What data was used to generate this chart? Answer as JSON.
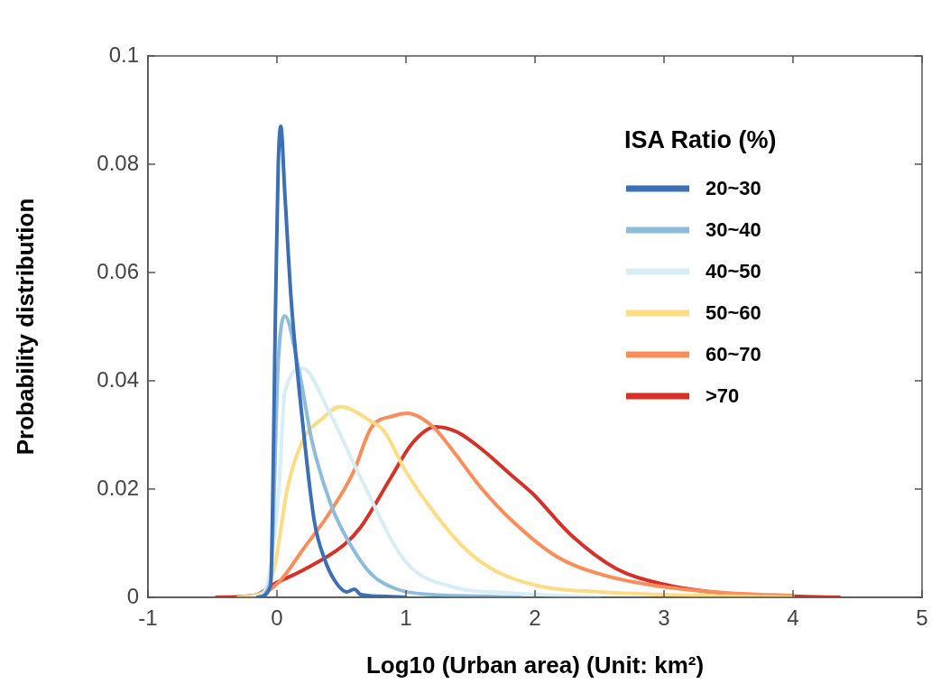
{
  "chart_data": {
    "type": "line",
    "xlabel": "Log10 (Urban area) (Unit: km²)",
    "ylabel": "Probability distribution",
    "legend_title": "ISA Ratio (%)",
    "legend": "top right",
    "xlim": [
      -1,
      5
    ],
    "xticks": [
      -1,
      0,
      1,
      2,
      3,
      4,
      5
    ],
    "ylim": [
      0,
      0.1
    ],
    "yticks": [
      0,
      0.02,
      0.04,
      0.06,
      0.08,
      0.1
    ],
    "line_style": "solid",
    "marker": "none",
    "series": [
      {
        "name": "20~30",
        "color": "#3b6fb6",
        "x": [
          -0.15,
          -0.05,
          -0.01,
          0.01,
          0.03,
          0.06,
          0.11,
          0.2,
          0.29,
          0.37,
          0.45,
          0.54,
          0.6,
          0.65,
          0.8,
          1.0
        ],
        "values": [
          0,
          0.002,
          0.055,
          0.08,
          0.087,
          0.075,
          0.055,
          0.032,
          0.014,
          0.007,
          0.003,
          0.001,
          0.0015,
          0.0005,
          0.0002,
          0
        ]
      },
      {
        "name": "30~40",
        "color": "#8dbcdc",
        "x": [
          -0.15,
          -0.05,
          0.01,
          0.06,
          0.17,
          0.27,
          0.42,
          0.57,
          0.73,
          0.93,
          1.2,
          1.6,
          1.89
        ],
        "values": [
          0,
          0.003,
          0.0435,
          0.052,
          0.042,
          0.029,
          0.017,
          0.0097,
          0.0043,
          0.0015,
          0.0005,
          0.0002,
          0
        ]
      },
      {
        "name": "40~50",
        "color": "#d8eef5",
        "x": [
          -0.2,
          -0.1,
          0.015,
          0.06,
          0.2,
          0.39,
          0.65,
          1.0,
          1.35,
          1.82,
          2.5
        ],
        "values": [
          0,
          0.001,
          0.02,
          0.0377,
          0.0423,
          0.035,
          0.022,
          0.0065,
          0.002,
          0.0008,
          0
        ]
      },
      {
        "name": "50~60",
        "color": "#fedc84",
        "x": [
          -0.3,
          -0.1,
          -0.02,
          0.08,
          0.2,
          0.35,
          0.49,
          0.73,
          0.83,
          1.0,
          1.23,
          1.47,
          1.7,
          2.05,
          2.5,
          3.0,
          4.0
        ],
        "values": [
          0,
          0.001,
          0.0055,
          0.02,
          0.029,
          0.033,
          0.0352,
          0.0325,
          0.0307,
          0.0232,
          0.0153,
          0.0087,
          0.0048,
          0.002,
          0.001,
          0.0005,
          0
        ]
      },
      {
        "name": "60~70",
        "color": "#fc8d59",
        "x": [
          -0.3,
          -0.1,
          0.03,
          0.2,
          0.39,
          0.59,
          0.73,
          0.9,
          1.01,
          1.21,
          1.35,
          1.58,
          1.82,
          2.17,
          2.52,
          2.98,
          3.5,
          4.0
        ],
        "values": [
          0,
          0.0008,
          0.0032,
          0.0088,
          0.015,
          0.023,
          0.0313,
          0.0335,
          0.034,
          0.0315,
          0.0275,
          0.0203,
          0.0142,
          0.0075,
          0.0042,
          0.002,
          0.0008,
          0.0003
        ]
      },
      {
        "name": ">70",
        "color": "#d73027",
        "x": [
          -0.47,
          -0.17,
          -0.02,
          0.2,
          0.52,
          0.65,
          0.88,
          1.05,
          1.23,
          1.4,
          1.58,
          1.82,
          1.98,
          2.28,
          2.63,
          2.98,
          3.45,
          4.0,
          4.36
        ],
        "values": [
          0,
          0.0004,
          0.0025,
          0.005,
          0.0097,
          0.013,
          0.022,
          0.0285,
          0.0315,
          0.0305,
          0.0275,
          0.0225,
          0.0192,
          0.0115,
          0.0053,
          0.0025,
          0.0008,
          0.0002,
          0
        ]
      }
    ]
  }
}
